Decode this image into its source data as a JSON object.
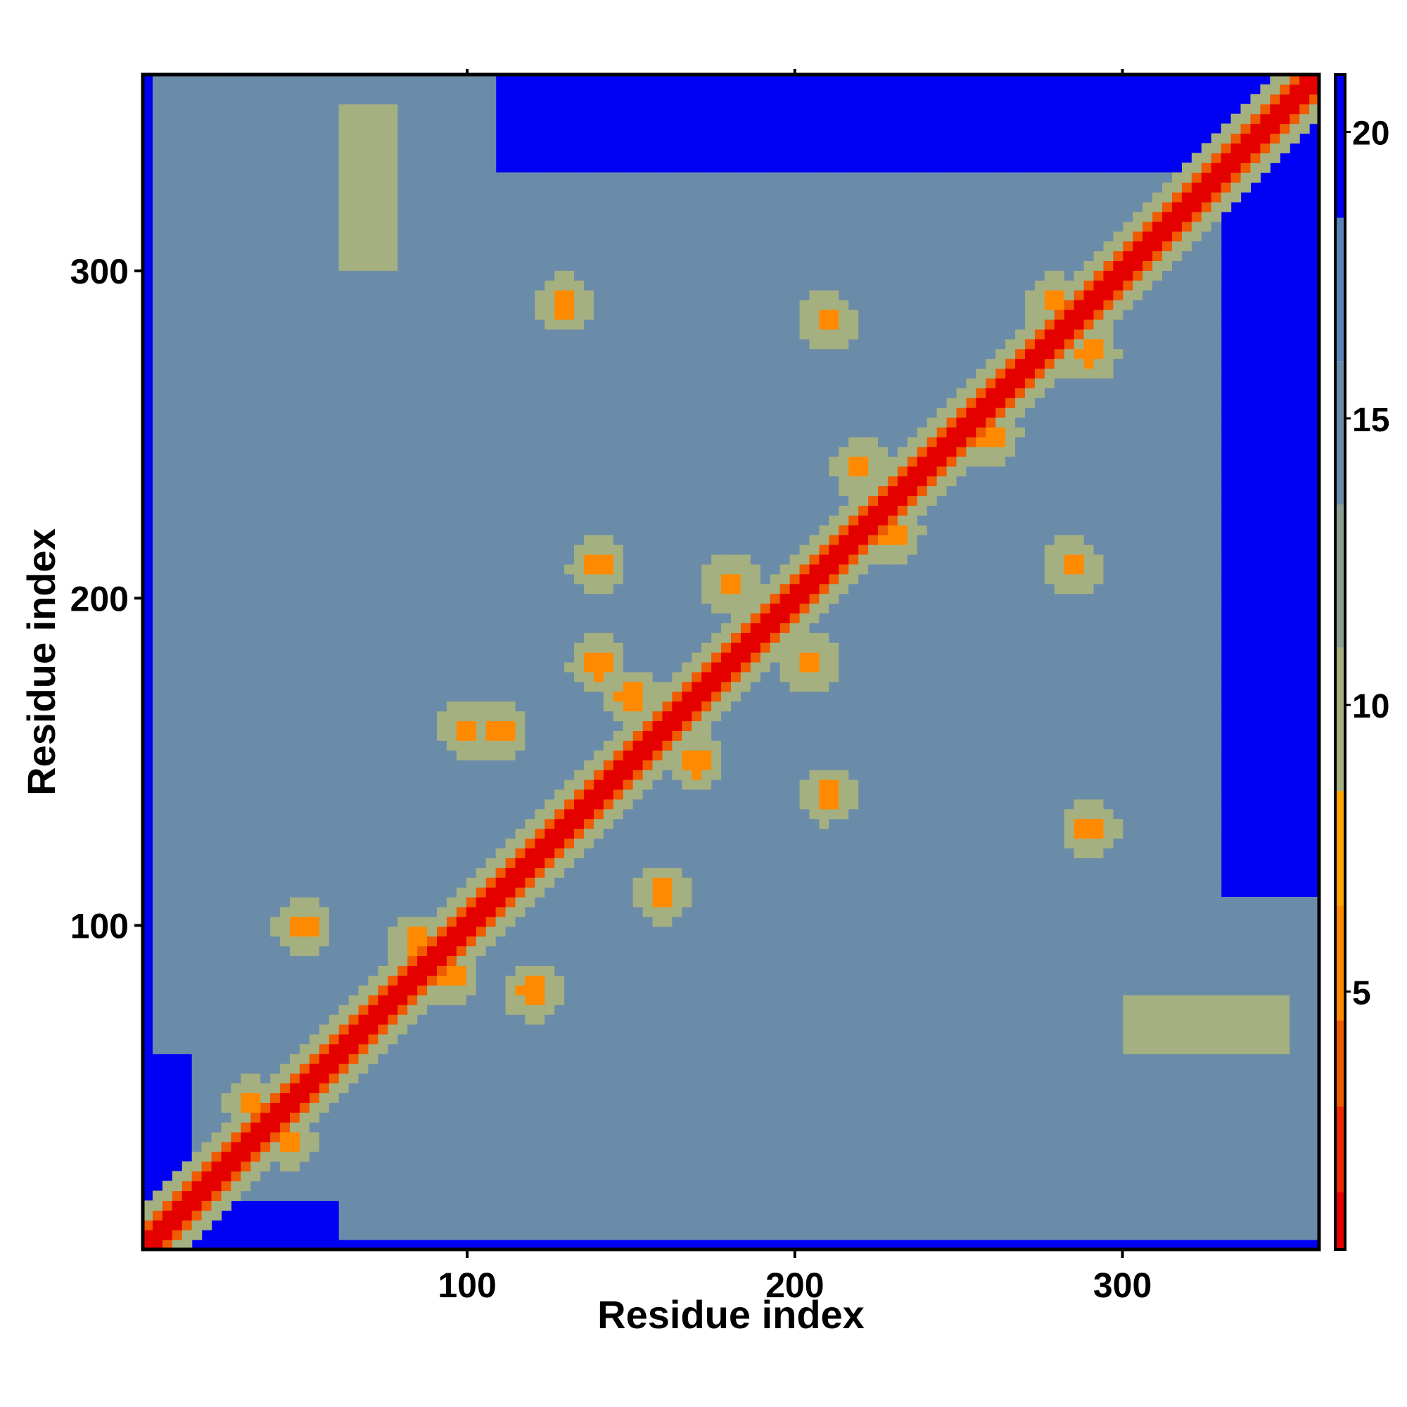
{
  "chart_data": {
    "type": "heatmap",
    "title": "",
    "xlabel": "Residue index",
    "ylabel": "Residue index",
    "xlim": [
      1,
      360
    ],
    "ylim": [
      1,
      360
    ],
    "x_ticks": [
      100,
      200,
      300
    ],
    "y_ticks": [
      100,
      200,
      300
    ],
    "grid": false,
    "colorbar": {
      "position": "right",
      "ticks": [
        5,
        10,
        15,
        20
      ],
      "range": [
        0.5,
        21
      ],
      "levels": [
        {
          "upto": 1.5,
          "color": "#e50000"
        },
        {
          "upto": 3.0,
          "color": "#ee2a00"
        },
        {
          "upto": 4.5,
          "color": "#f05a00"
        },
        {
          "upto": 6.5,
          "color": "#ff8a00"
        },
        {
          "upto": 8.5,
          "color": "#ffa500"
        },
        {
          "upto": 11.0,
          "color": "#a5b080"
        },
        {
          "upto": 13.5,
          "color": "#8a9f92"
        },
        {
          "upto": 16.0,
          "color": "#6b8ca8"
        },
        {
          "upto": 18.5,
          "color": "#5783b8"
        },
        {
          "upto": 21.0,
          "color": "#0000f5"
        }
      ]
    },
    "diagonal_distance": 1,
    "background_distance": 21,
    "contact_regions": [
      {
        "x": [
          15,
          110
        ],
        "y": [
          15,
          110
        ],
        "value": 14
      },
      {
        "x": [
          5,
          110
        ],
        "y": [
          60,
          360
        ],
        "value": 15
      },
      {
        "x": [
          100,
          330
        ],
        "y": [
          100,
          330
        ],
        "value": 15
      },
      {
        "x": [
          100,
          345
        ],
        "y": [
          20,
          110
        ],
        "value": 16
      },
      {
        "x": [
          300,
          350
        ],
        "y": [
          60,
          80
        ],
        "value": 10
      }
    ],
    "secondary_contacts": [
      [
        35,
        45
      ],
      [
        45,
        35
      ],
      [
        25,
        25
      ],
      [
        60,
        60
      ],
      [
        50,
        100
      ],
      [
        100,
        100
      ],
      [
        95,
        95
      ],
      [
        110,
        160
      ],
      [
        160,
        110
      ],
      [
        150,
        170
      ],
      [
        170,
        150
      ],
      [
        190,
        190
      ],
      [
        180,
        205
      ],
      [
        205,
        180
      ],
      [
        140,
        210
      ],
      [
        210,
        140
      ],
      [
        230,
        220
      ],
      [
        220,
        240
      ],
      [
        260,
        250
      ],
      [
        280,
        290
      ],
      [
        290,
        275
      ],
      [
        285,
        210
      ],
      [
        210,
        285
      ],
      [
        290,
        130
      ],
      [
        130,
        290
      ],
      [
        120,
        80
      ],
      [
        85,
        95
      ],
      [
        95,
        85
      ],
      [
        140,
        180
      ],
      [
        100,
        160
      ]
    ]
  }
}
